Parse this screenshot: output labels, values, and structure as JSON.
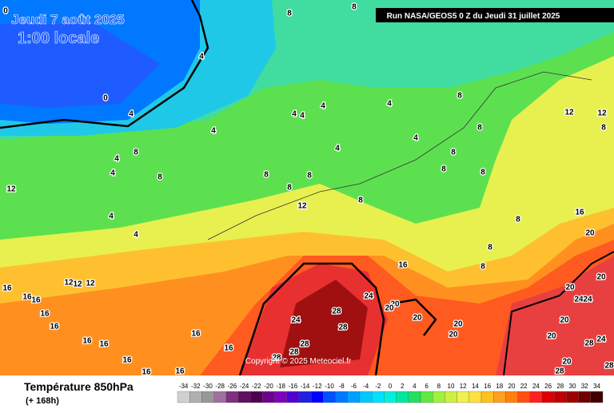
{
  "header": {
    "date": "Jeudi 7 août 2025",
    "time": "1:00 locale",
    "run": "Run NASA/GEOS5 0 Z du Jeudi 31 juillet 2025"
  },
  "copyright": "Copyright © 2025 Meteociel.fr",
  "footer": {
    "title": "Température 850hPa",
    "lead": "(+ 168h)"
  },
  "legend": {
    "values": [
      -34,
      -32,
      -30,
      -28,
      -26,
      -24,
      -22,
      -20,
      -18,
      -16,
      -14,
      -12,
      -10,
      -8,
      -6,
      -4,
      -2,
      0,
      2,
      4,
      6,
      8,
      10,
      12,
      14,
      16,
      18,
      20,
      22,
      24,
      26,
      28,
      30,
      32,
      34
    ],
    "colors": [
      "#d0d0d0",
      "#b0b0b0",
      "#989898",
      "#a070a0",
      "#803080",
      "#601060",
      "#500050",
      "#700090",
      "#8000c0",
      "#5000d0",
      "#2020e0",
      "#0000ff",
      "#0050ff",
      "#0078ff",
      "#00a0ff",
      "#00c8ff",
      "#00e0ff",
      "#00f0e0",
      "#00e8a0",
      "#20e060",
      "#60e840",
      "#a0f040",
      "#d0f040",
      "#f0f050",
      "#ffe040",
      "#ffc020",
      "#ffa020",
      "#ff8010",
      "#ff5010",
      "#ff2020",
      "#e00000",
      "#c00000",
      "#a00000",
      "#700000",
      "#400000"
    ]
  },
  "map_labels": [
    8,
    8,
    0,
    4,
    0,
    4,
    4,
    4,
    4,
    4,
    12,
    12,
    4,
    8,
    8,
    8,
    4,
    4,
    4,
    8,
    4,
    8,
    8,
    8,
    8,
    8,
    12,
    8,
    8,
    12,
    16,
    4,
    8,
    8,
    4,
    20,
    8,
    16,
    8,
    20,
    12,
    12,
    12,
    16,
    16,
    16,
    24,
    20,
    20,
    20,
    24,
    24,
    16,
    28,
    20,
    20,
    24,
    28,
    20,
    20,
    16,
    16,
    20,
    28,
    16,
    16,
    16,
    24,
    28,
    28,
    16,
    20,
    28,
    28,
    16,
    16,
    28
  ]
}
